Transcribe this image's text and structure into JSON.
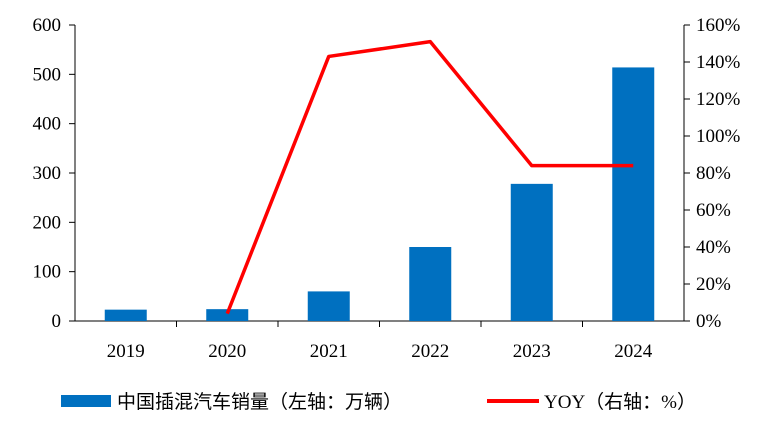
{
  "chart_data": {
    "type": "bar",
    "categories": [
      "2019",
      "2020",
      "2021",
      "2022",
      "2023",
      "2024"
    ],
    "series": [
      {
        "name": "中国插混汽车销量（左轴：万辆）",
        "type": "bar",
        "axis": "left",
        "color": "#0070C0",
        "values": [
          23,
          24,
          60,
          150,
          278,
          514
        ]
      },
      {
        "name": "YOY（右轴：%）",
        "type": "line",
        "axis": "right",
        "color": "#FF0000",
        "values": [
          null,
          4,
          143,
          151,
          84,
          84
        ]
      }
    ],
    "y_left": {
      "lim": [
        0,
        600
      ],
      "ticks": [
        0,
        100,
        200,
        300,
        400,
        500,
        600
      ],
      "tick_labels": [
        "0",
        "100",
        "200",
        "300",
        "400",
        "500",
        "600"
      ]
    },
    "y_right": {
      "lim": [
        0,
        160
      ],
      "ticks": [
        0,
        20,
        40,
        60,
        80,
        100,
        120,
        140,
        160
      ],
      "tick_labels": [
        "0%",
        "20%",
        "40%",
        "60%",
        "80%",
        "100%",
        "120%",
        "140%",
        "160%"
      ]
    },
    "grid": false,
    "legend_position": "bottom"
  }
}
